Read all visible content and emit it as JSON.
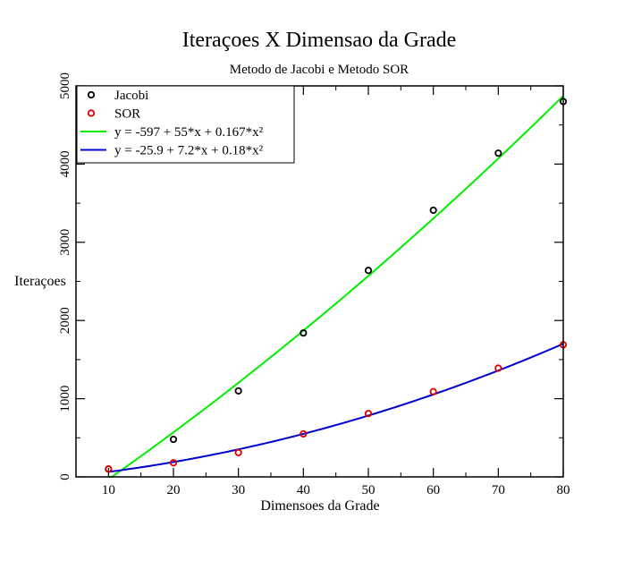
{
  "chart_data": {
    "type": "scatter",
    "title": "Iteraçoes X Dimensao da Grade",
    "subtitle": "Metodo de Jacobi e Metodo SOR",
    "xlabel": "Dimensoes da Grade",
    "ylabel": "Iteraçoes",
    "xlim": [
      5,
      80
    ],
    "ylim": [
      0,
      5000
    ],
    "xticks": [
      10,
      20,
      30,
      40,
      50,
      60,
      70,
      80
    ],
    "yticks": [
      0,
      1000,
      2000,
      3000,
      4000,
      5000
    ],
    "grid": false,
    "legend_position": "top-left",
    "series": [
      {
        "name": "Jacobi",
        "kind": "points",
        "color": "#000000",
        "x": [
          10,
          20,
          30,
          40,
          50,
          60,
          70,
          80
        ],
        "y": [
          100,
          480,
          1100,
          1840,
          2640,
          3410,
          4140,
          4800
        ]
      },
      {
        "name": "SOR",
        "kind": "points",
        "color": "#dd0000",
        "x": [
          10,
          20,
          30,
          40,
          50,
          60,
          70,
          80
        ],
        "y": [
          100,
          180,
          310,
          550,
          810,
          1090,
          1390,
          1690
        ]
      },
      {
        "name": "y = -597 + 55*x + 0.167*x²",
        "kind": "fit",
        "color": "#00ee00",
        "coefficients": [
          -597,
          55,
          0.167
        ],
        "x_range": [
          10,
          80
        ]
      },
      {
        "name": "y = -25.9 + 7.2*x + 0.18*x²",
        "kind": "fit",
        "color": "#0000cc",
        "coefficients": [
          -25.9,
          7.2,
          0.18
        ],
        "x_range": [
          10,
          80
        ]
      }
    ]
  }
}
